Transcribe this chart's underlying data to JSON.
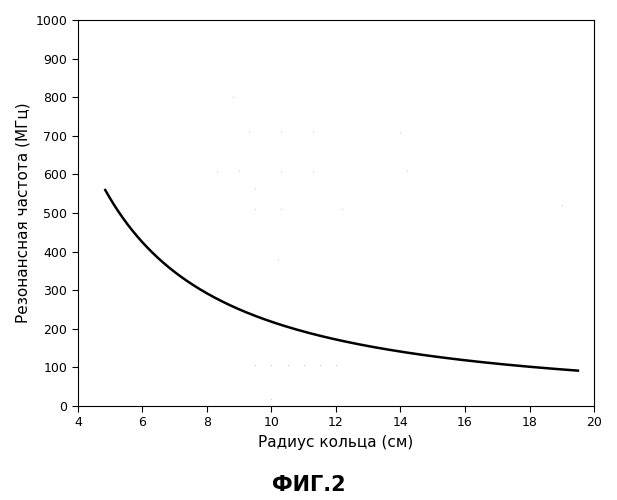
{
  "title": "ФИГ.2",
  "xlabel": "Радиус кольца (см)",
  "ylabel": "Резонансная частота (МГц)",
  "xlim": [
    4,
    20
  ],
  "ylim": [
    0,
    1000
  ],
  "xticks": [
    4,
    6,
    8,
    10,
    12,
    14,
    16,
    18,
    20
  ],
  "yticks": [
    0,
    100,
    200,
    300,
    400,
    500,
    600,
    700,
    800,
    900,
    1000
  ],
  "curve_color": "#000000",
  "curve_linewidth": 1.8,
  "curve_x_start": 4.85,
  "curve_x_end": 19.5,
  "curve_A_coef": 4358.0,
  "curve_power": 1.3,
  "scatter_dots": [
    [
      8.8,
      800.0
    ],
    [
      9.3,
      710.0
    ],
    [
      10.3,
      710.0
    ],
    [
      11.3,
      710.0
    ],
    [
      14.0,
      710.0
    ],
    [
      8.3,
      610.0
    ],
    [
      9.0,
      610.0
    ],
    [
      10.3,
      610.0
    ],
    [
      11.3,
      610.0
    ],
    [
      14.2,
      610.0
    ],
    [
      9.5,
      565.0
    ],
    [
      9.5,
      510.0
    ],
    [
      10.3,
      510.0
    ],
    [
      12.2,
      510.0
    ],
    [
      10.2,
      380.0
    ],
    [
      9.5,
      105.0
    ],
    [
      10.0,
      105.0
    ],
    [
      10.5,
      105.0
    ],
    [
      11.0,
      105.0
    ],
    [
      11.5,
      105.0
    ],
    [
      12.0,
      105.0
    ],
    [
      10.0,
      18.0
    ],
    [
      19.0,
      520.0
    ]
  ],
  "dot_color": "#bbbbbb",
  "dot_size": 1.5,
  "background_color": "#ffffff",
  "font_size_labels": 11,
  "font_size_title": 15,
  "font_size_ticks": 9
}
